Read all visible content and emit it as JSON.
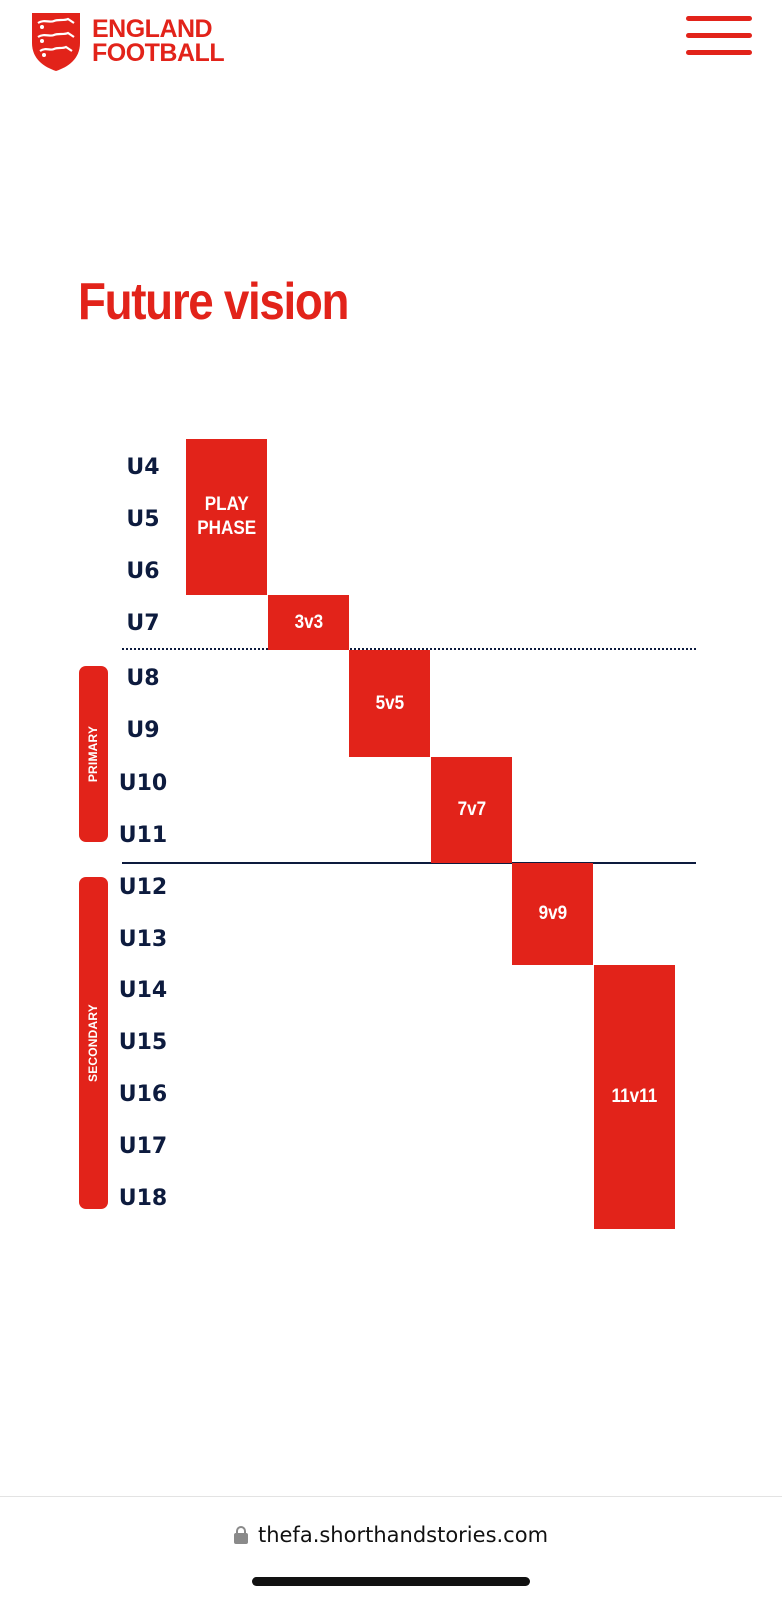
{
  "header": {
    "logo_line1": "ENGLAND",
    "logo_line2": "FOOTBALL",
    "menu_icon": "hamburger-menu-icon"
  },
  "main": {
    "title": "Future vision"
  },
  "chart_data": {
    "type": "table",
    "age_groups": [
      "U4",
      "U5",
      "U6",
      "U7",
      "U8",
      "U9",
      "U10",
      "U11",
      "U12",
      "U13",
      "U14",
      "U15",
      "U16",
      "U17",
      "U18"
    ],
    "formats": [
      {
        "label_line1": "PLAY",
        "label_line2": "PHASE",
        "from": "U4",
        "to": "U6"
      },
      {
        "label_line1": "3v3",
        "label_line2": "",
        "from": "U7",
        "to": "U7"
      },
      {
        "label_line1": "5v5",
        "label_line2": "",
        "from": "U8",
        "to": "U9"
      },
      {
        "label_line1": "7v7",
        "label_line2": "",
        "from": "U10",
        "to": "U11"
      },
      {
        "label_line1": "9v9",
        "label_line2": "",
        "from": "U12",
        "to": "U13"
      },
      {
        "label_line1": "11v11",
        "label_line2": "",
        "from": "U14",
        "to": "U18"
      }
    ],
    "school_stages": [
      {
        "label": "PRIMARY",
        "from": "U8",
        "to": "U11"
      },
      {
        "label": "SECONDARY",
        "from": "U12",
        "to": "U18"
      }
    ],
    "separators": [
      {
        "style": "dotted",
        "after": "U7"
      },
      {
        "style": "solid",
        "after": "U11"
      }
    ],
    "colors": {
      "accent": "#e2231a",
      "text": "#0d1b3e"
    }
  },
  "browser": {
    "url": "thefa.shorthandstories.com",
    "lock_icon": "lock-icon"
  }
}
